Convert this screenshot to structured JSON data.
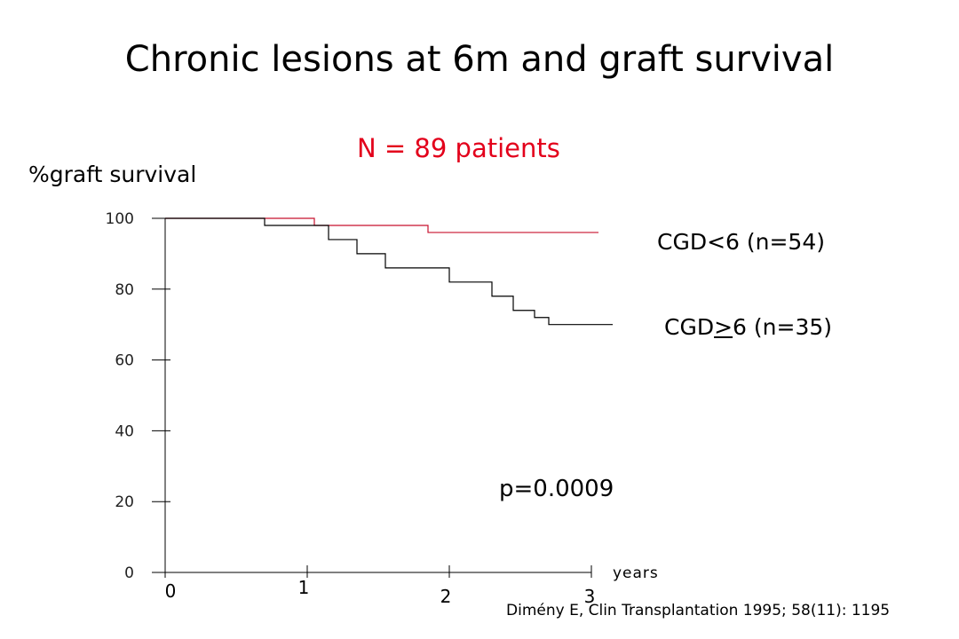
{
  "slide": {
    "title": "Chronic lesions at 6m and graft survival",
    "subtitle": "N = 89 patients",
    "p_value": "p=0.0009",
    "citation": "Dimény E, Clin Transplantation 1995; 58(11): 1195"
  },
  "chart_data": {
    "type": "line",
    "step": true,
    "ylabel": "%graft survival",
    "xlabel": "years",
    "ylim": [
      0,
      100
    ],
    "xlim": [
      0,
      3
    ],
    "yticks": [
      0,
      20,
      40,
      60,
      80,
      100
    ],
    "xticks": [
      0,
      1,
      2,
      3
    ],
    "grid": false,
    "series": [
      {
        "name": "CGD<6 (n=54)",
        "color": "#c8102e",
        "x": [
          0,
          1.05,
          1.85,
          3.05
        ],
        "y": [
          100,
          98,
          96,
          96
        ]
      },
      {
        "name": "CGD>6 (n=35)",
        "name_prefix": "CGD",
        "name_underlined": ">",
        "name_suffix": "6 (n=35)",
        "color": "#000000",
        "x": [
          0,
          0.7,
          1.15,
          1.35,
          1.55,
          2.0,
          2.3,
          2.45,
          2.6,
          2.7,
          3.15
        ],
        "y": [
          100,
          98,
          94,
          90,
          86,
          82,
          78,
          74,
          72,
          70,
          70
        ]
      }
    ]
  }
}
